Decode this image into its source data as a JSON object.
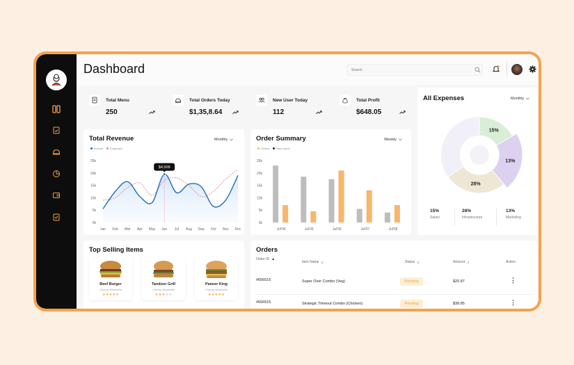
{
  "header": {
    "title": "Dashboard",
    "search_placeholder": "Search"
  },
  "stats": [
    {
      "label": "Total Menu",
      "value": "250",
      "bg": "#cde3ec",
      "icon": "menu-icon"
    },
    {
      "label": "Total Orders Today",
      "value": "$1,35,8.64",
      "bg": "#ede4cf",
      "icon": "cloche-icon"
    },
    {
      "label": "New User Today",
      "value": "112",
      "bg": "#ddd3ef",
      "icon": "users-icon"
    },
    {
      "label": "Total Profit",
      "value": "$648.05",
      "bg": "#d7eccf",
      "icon": "money-bag-icon"
    }
  ],
  "revenue": {
    "title": "Total Revenue",
    "filter": "Monthly",
    "legend": [
      "Income",
      "Expenses"
    ],
    "tooltip": "$4,509"
  },
  "order_summary": {
    "title": "Order Summary",
    "filter": "Weekly",
    "legend": [
      "Orders",
      "New Users"
    ]
  },
  "expenses": {
    "title": "All Expenses",
    "filter": "Monthly",
    "segments": [
      {
        "label": "15%",
        "name": "Salary",
        "color": "#d9eed6"
      },
      {
        "label": "13%",
        "name": "Marketing",
        "color": "#dcd2f0"
      },
      {
        "label": "28%",
        "name": "Infrastructure",
        "color": "#efe7d6"
      }
    ],
    "summary": [
      {
        "value": "15%",
        "label": "Salary"
      },
      {
        "value": "28%",
        "label": "Infrastructure"
      },
      {
        "value": "13%",
        "label": "Marketing"
      }
    ]
  },
  "top_selling": {
    "title": "Top Selling Items",
    "items": [
      {
        "name": "Beef Burger",
        "sub": "Cheesy Mozarello",
        "rating": 5
      },
      {
        "name": "Tandoor Grill",
        "sub": "Cheesy Mozarello",
        "rating": 3
      },
      {
        "name": "Paneer King",
        "sub": "Cheesy Mozarello",
        "rating": 5
      }
    ]
  },
  "orders": {
    "title": "Orders",
    "columns": [
      "Order ID",
      "Item Name",
      "Status",
      "Amount",
      "Action"
    ],
    "rows": [
      {
        "id": "#656515",
        "item": "Super Over Combo (Veg)",
        "status": "Pending",
        "amount": "$20.87"
      },
      {
        "id": "#656515",
        "item": "Strategic Timeout Combo (Chicken)",
        "status": "Pending",
        "amount": "$38.85"
      }
    ]
  },
  "chart_data": [
    {
      "type": "line",
      "title": "Total Revenue",
      "categories": [
        "Jan",
        "Feb",
        "Mar",
        "Apr",
        "May",
        "Jun",
        "Jul",
        "Aug",
        "Sep",
        "Oct",
        "Nov",
        "Dec"
      ],
      "ylim": [
        0,
        25000
      ],
      "yticks": [
        "0k",
        "5k",
        "10k",
        "15k",
        "20k",
        "25k"
      ],
      "series": [
        {
          "name": "Income",
          "values": [
            5500,
            12500,
            16500,
            10500,
            8000,
            19500,
            12000,
            15500,
            14500,
            6500,
            9000,
            19000
          ]
        },
        {
          "name": "Expenses",
          "values": [
            9000,
            10000,
            14000,
            16000,
            11000,
            17000,
            18000,
            15000,
            10500,
            12500,
            17500,
            21500
          ]
        }
      ]
    },
    {
      "type": "bar",
      "title": "Order Summary",
      "categories": [
        "Jul'04",
        "Jul'05",
        "Jul'06",
        "Jul'07",
        "Jul'08"
      ],
      "ylim": [
        0,
        25000
      ],
      "yticks": [
        "0k",
        "5k",
        "10k",
        "15k",
        "20k",
        "25k"
      ],
      "series": [
        {
          "name": "Orders",
          "values": [
            23000,
            18500,
            17500,
            5500,
            4000
          ]
        },
        {
          "name": "New Users",
          "values": [
            7000,
            4500,
            21000,
            13000,
            7000
          ]
        }
      ]
    },
    {
      "type": "pie",
      "title": "All Expenses",
      "series": [
        {
          "name": "Salary",
          "values": [
            15
          ]
        },
        {
          "name": "Marketing",
          "values": [
            13
          ]
        },
        {
          "name": "Infrastructure",
          "values": [
            28
          ]
        }
      ]
    }
  ]
}
